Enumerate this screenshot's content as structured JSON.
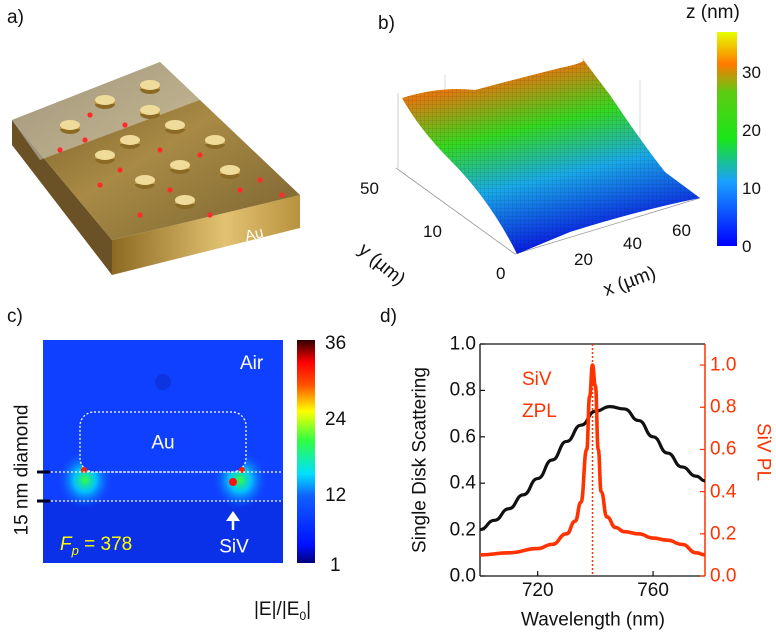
{
  "panels": {
    "a": {
      "label": "a)",
      "material": "Au"
    },
    "b": {
      "label": "b)",
      "colorbar_title": "z (nm)",
      "colorbar_ticks": [
        "0",
        "10",
        "20",
        "30"
      ],
      "y_axis_label": "y (µm)",
      "y_ticks": [
        "0",
        "10",
        "50"
      ],
      "x_axis_label": "x (µm)",
      "x_ticks": [
        "20",
        "40",
        "60"
      ]
    },
    "c": {
      "label": "c)",
      "region_air": "Air",
      "region_au": "Au",
      "side_label": "15 nm diamond",
      "fp_symbol": "F",
      "fp_sub": "p",
      "fp_value": " = 378",
      "emitter_label": "SiV",
      "colorbar_ticks": [
        "36",
        "24",
        "12",
        "1"
      ],
      "colorbar_title": "|E|/|E",
      "colorbar_title_sub": "0",
      "colorbar_title_end": "|"
    },
    "d": {
      "label": "d)",
      "annotation_line1": "SiV",
      "annotation_line2": "ZPL"
    }
  },
  "colors": {
    "scatter": "#111111",
    "pl": "#ff3300",
    "gold": "#c9a24a"
  },
  "chart_data": {
    "type": "line",
    "title": "",
    "xlabel": "Wavelength (nm)",
    "ylabel": "Single Disk Scattering",
    "y2label": "SiV PL",
    "xlim": [
      700,
      778
    ],
    "ylim": [
      0,
      1.0
    ],
    "y2lim": [
      0,
      1.1
    ],
    "xticks": [
      "720",
      "760"
    ],
    "xtick_values": [
      720,
      760
    ],
    "yticks": [
      "0.0",
      "0.2",
      "0.4",
      "0.6",
      "0.8",
      "1.0"
    ],
    "y2ticks": [
      "0.0",
      "0.2",
      "0.4",
      "0.6",
      "0.8",
      "1.0"
    ],
    "zpl_wavelength": 739,
    "series": [
      {
        "name": "Single Disk Scattering",
        "axis": "left",
        "x": [
          700,
          705,
          710,
          715,
          720,
          725,
          730,
          735,
          740,
          745,
          750,
          755,
          760,
          765,
          770,
          775,
          778
        ],
        "values": [
          0.2,
          0.24,
          0.29,
          0.35,
          0.42,
          0.5,
          0.58,
          0.65,
          0.71,
          0.73,
          0.72,
          0.67,
          0.6,
          0.53,
          0.47,
          0.43,
          0.41
        ]
      },
      {
        "name": "SiV PL",
        "axis": "right",
        "x": [
          700,
          710,
          720,
          725,
          730,
          733,
          735,
          737,
          738,
          739,
          740,
          741,
          742,
          744,
          747,
          750,
          755,
          760,
          765,
          770,
          775,
          778
        ],
        "values": [
          0.1,
          0.11,
          0.13,
          0.15,
          0.2,
          0.26,
          0.35,
          0.6,
          0.85,
          1.0,
          0.9,
          0.6,
          0.4,
          0.28,
          0.23,
          0.21,
          0.2,
          0.18,
          0.17,
          0.15,
          0.11,
          0.1
        ]
      }
    ]
  }
}
